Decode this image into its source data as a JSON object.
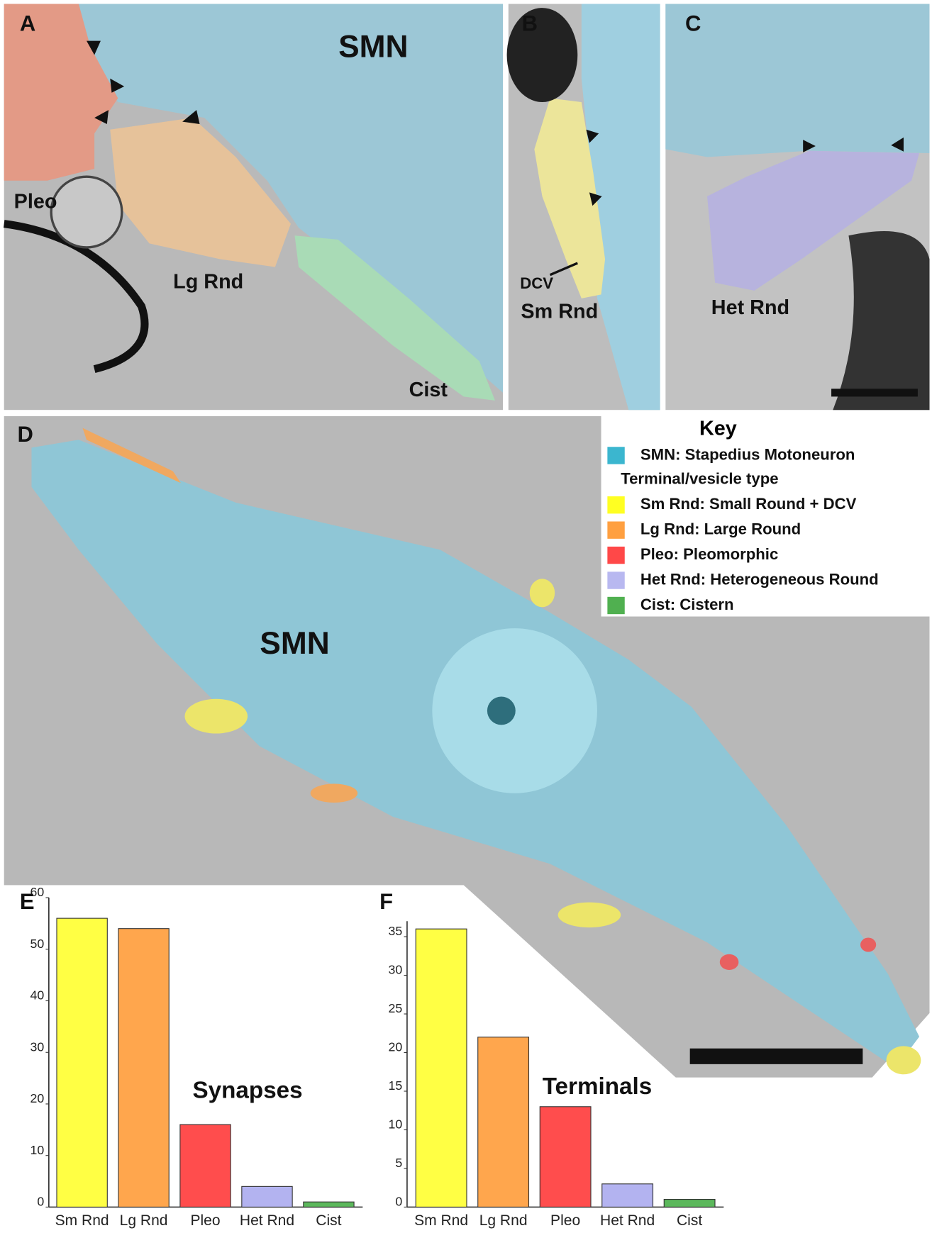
{
  "panels": {
    "A": {
      "label": "A",
      "texts": [
        "SMN",
        "Pleo",
        "Lg Rnd",
        "Cist"
      ]
    },
    "B": {
      "label": "B",
      "texts": [
        "DCV",
        "Sm Rnd"
      ]
    },
    "C": {
      "label": "C",
      "texts": [
        "Het Rnd"
      ]
    },
    "D": {
      "label": "D",
      "texts": [
        "SMN"
      ]
    }
  },
  "key": {
    "title": "Key",
    "neuron": {
      "label": "SMN: Stapedius Motoneuron",
      "color": "#3bb6cf"
    },
    "subtitle": "Terminal/vesicle type",
    "items": [
      {
        "label": "Sm Rnd: Small Round + DCV",
        "color": "#ffff22"
      },
      {
        "label": "Lg Rnd: Large Round",
        "color": "#ffa040"
      },
      {
        "label": "Pleo: Pleomorphic",
        "color": "#ff4848"
      },
      {
        "label": "Het Rnd: Heterogeneous Round",
        "color": "#b8b8f0"
      },
      {
        "label": "Cist: Cistern",
        "color": "#50b050"
      }
    ]
  },
  "chart_data": [
    {
      "type": "bar",
      "panel": "E",
      "title": "Synapses",
      "categories": [
        "Sm Rnd",
        "Lg Rnd",
        "Pleo",
        "Het Rnd",
        "Cist"
      ],
      "values": [
        56,
        54,
        16,
        4,
        1
      ],
      "colors": [
        "#ffff44",
        "#ffa64d",
        "#ff4d4d",
        "#b3b3f0",
        "#5cb85c"
      ],
      "ylim": [
        0,
        60
      ],
      "yticks": [
        0,
        10,
        20,
        30,
        40,
        50,
        60
      ]
    },
    {
      "type": "bar",
      "panel": "F",
      "title": "Terminals",
      "categories": [
        "Sm Rnd",
        "Lg Rnd",
        "Pleo",
        "Het Rnd",
        "Cist"
      ],
      "values": [
        36,
        22,
        13,
        3,
        1
      ],
      "colors": [
        "#ffff44",
        "#ffa64d",
        "#ff4d4d",
        "#b3b3f0",
        "#5cb85c"
      ],
      "ylim": [
        0,
        37
      ],
      "yticks": [
        0,
        5,
        10,
        15,
        20,
        25,
        30,
        35
      ]
    }
  ]
}
